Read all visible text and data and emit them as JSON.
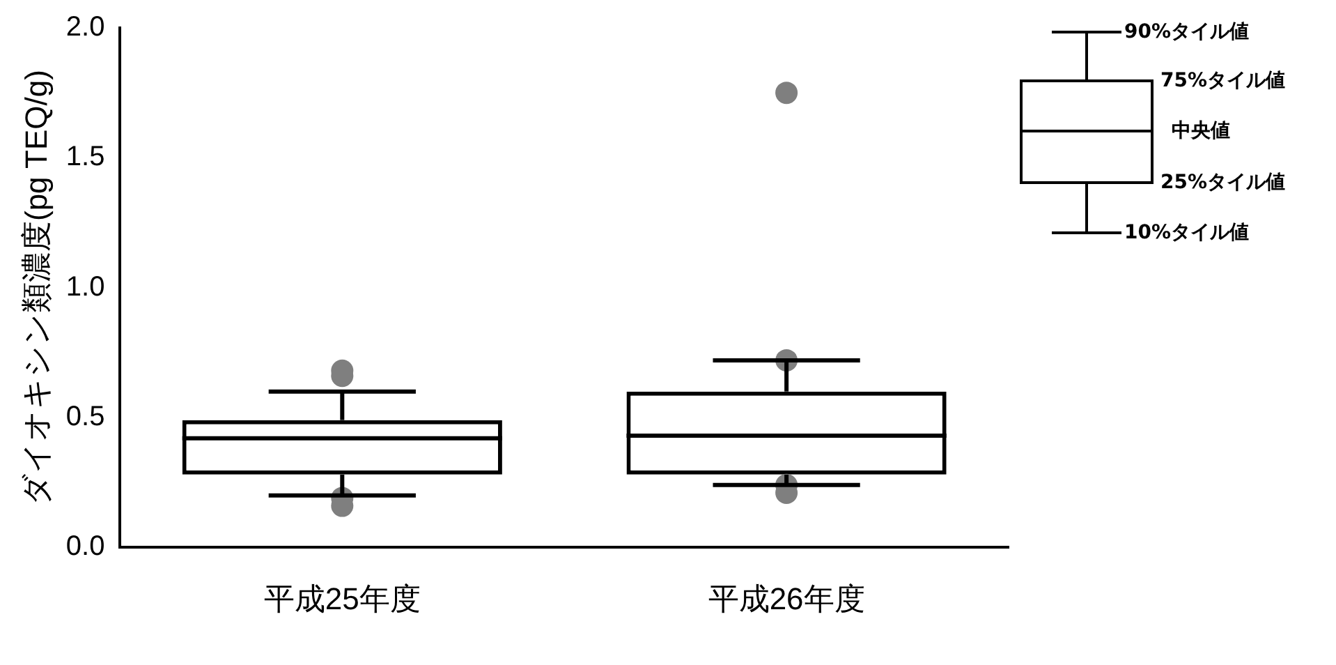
{
  "chart_data": {
    "type": "box",
    "ylabel": "ダイオキシン類濃度(pg TEQ/g)",
    "categories": [
      "平成25年度",
      "平成26年度"
    ],
    "boxes": [
      {
        "low": 0.2,
        "q1": 0.28,
        "median": 0.42,
        "q3": 0.49,
        "high": 0.6,
        "outliers": [
          0.68,
          0.66,
          0.16,
          0.19
        ]
      },
      {
        "low": 0.24,
        "q1": 0.28,
        "median": 0.43,
        "q3": 0.6,
        "high": 0.72,
        "outliers": [
          1.75,
          0.72,
          0.21,
          0.24
        ]
      }
    ],
    "color": "#000000",
    "ylim": [
      0,
      2
    ],
    "yticks": [
      {
        "value": 0,
        "label": "0.0"
      },
      {
        "value": 0.5,
        "label": "0.5"
      },
      {
        "value": 1,
        "label": "1.0"
      },
      {
        "value": 1.5,
        "label": "1.5"
      },
      {
        "value": 2,
        "label": "2.0"
      }
    ],
    "annotations": [
      "90%タイル値",
      "75%タイル値",
      "中央値",
      "25%タイル値",
      "10%タイル値"
    ]
  }
}
